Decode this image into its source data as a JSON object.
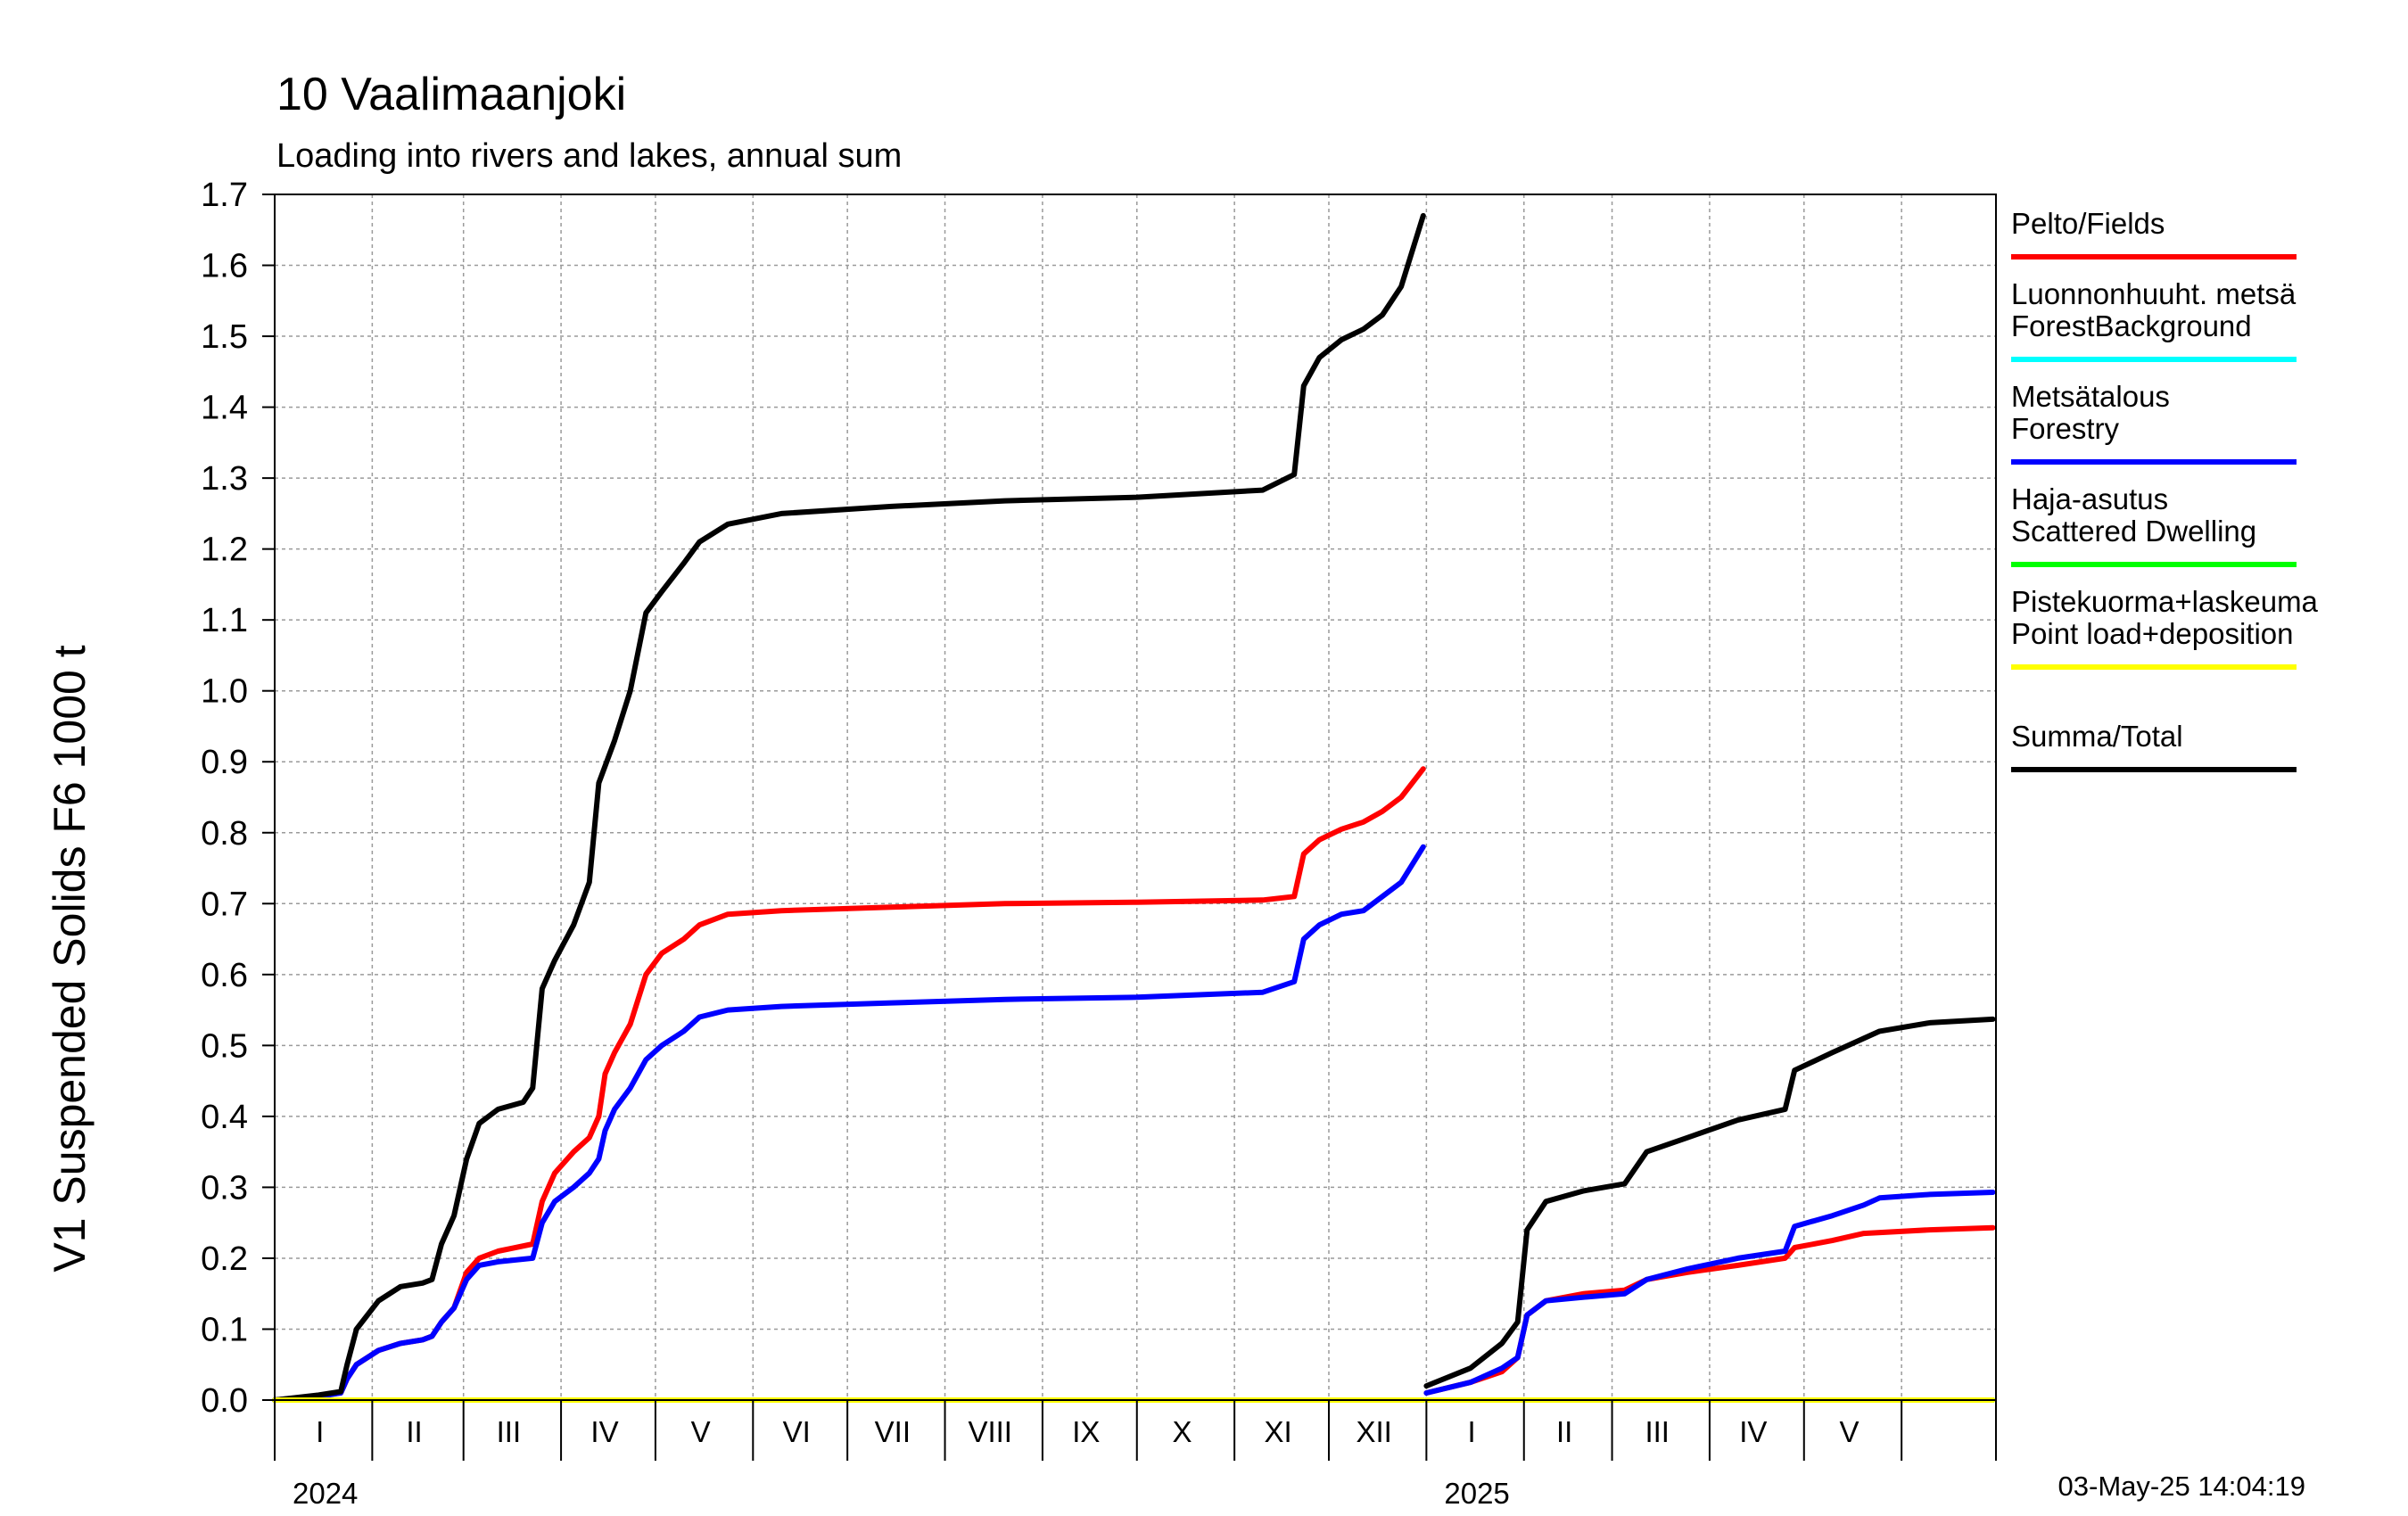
{
  "chart_data": {
    "type": "line",
    "title": "10 Vaalimaanjoki",
    "subtitle": "Loading into rivers and lakes, annual sum",
    "ylabel": "V1 Suspended Solids F6 1000 t",
    "ylim": [
      0.0,
      1.7
    ],
    "yticks": [
      "0.0",
      "0.1",
      "0.2",
      "0.3",
      "0.4",
      "0.5",
      "0.6",
      "0.7",
      "0.8",
      "0.9",
      "1.0",
      "1.1",
      "1.2",
      "1.3",
      "1.4",
      "1.5",
      "1.6",
      "1.7"
    ],
    "xlim": [
      "2024-01-01",
      "2025-06-30"
    ],
    "months": [
      {
        "label": "I",
        "start": "2024-01-01"
      },
      {
        "label": "II",
        "start": "2024-02-01"
      },
      {
        "label": "III",
        "start": "2024-03-01"
      },
      {
        "label": "IV",
        "start": "2024-04-01"
      },
      {
        "label": "V",
        "start": "2024-05-01"
      },
      {
        "label": "VI",
        "start": "2024-06-01"
      },
      {
        "label": "VII",
        "start": "2024-07-01"
      },
      {
        "label": "VIII",
        "start": "2024-08-01"
      },
      {
        "label": "IX",
        "start": "2024-09-01"
      },
      {
        "label": "X",
        "start": "2024-10-01"
      },
      {
        "label": "XI",
        "start": "2024-11-01"
      },
      {
        "label": "XII",
        "start": "2024-12-01"
      },
      {
        "label": "I",
        "start": "2025-01-01"
      },
      {
        "label": "II",
        "start": "2025-02-01"
      },
      {
        "label": "III",
        "start": "2025-03-01"
      },
      {
        "label": "IV",
        "start": "2025-04-01"
      },
      {
        "label": "V",
        "start": "2025-05-01"
      },
      {
        "label": "",
        "start": "2025-06-01"
      }
    ],
    "years": [
      {
        "label": "2024",
        "start": "2024-01-01"
      },
      {
        "label": "2025",
        "start": "2025-01-01"
      }
    ],
    "grid": true,
    "legend_position": "right",
    "timestamp": "03-May-25 14:04:19",
    "series": [
      {
        "name": "Pelto/Fields",
        "color": "#ff0000",
        "segments": [
          [
            [
              "2024-01-01",
              0.0
            ],
            [
              "2024-01-15",
              0.006
            ],
            [
              "2024-01-22",
              0.01
            ],
            [
              "2024-01-24",
              0.03
            ],
            [
              "2024-01-27",
              0.05
            ],
            [
              "2024-02-03",
              0.07
            ],
            [
              "2024-02-10",
              0.08
            ],
            [
              "2024-02-17",
              0.085
            ],
            [
              "2024-02-20",
              0.09
            ],
            [
              "2024-02-23",
              0.11
            ],
            [
              "2024-02-27",
              0.13
            ],
            [
              "2024-03-02",
              0.18
            ],
            [
              "2024-03-06",
              0.2
            ],
            [
              "2024-03-12",
              0.21
            ],
            [
              "2024-03-23",
              0.22
            ],
            [
              "2024-03-26",
              0.28
            ],
            [
              "2024-03-30",
              0.32
            ],
            [
              "2024-04-05",
              0.35
            ],
            [
              "2024-04-10",
              0.37
            ],
            [
              "2024-04-13",
              0.4
            ],
            [
              "2024-04-15",
              0.46
            ],
            [
              "2024-04-18",
              0.49
            ],
            [
              "2024-04-23",
              0.53
            ],
            [
              "2024-04-28",
              0.6
            ],
            [
              "2024-05-03",
              0.63
            ],
            [
              "2024-05-10",
              0.65
            ],
            [
              "2024-05-15",
              0.67
            ],
            [
              "2024-05-24",
              0.685
            ],
            [
              "2024-06-10",
              0.69
            ],
            [
              "2024-07-15",
              0.695
            ],
            [
              "2024-08-20",
              0.7
            ],
            [
              "2024-10-01",
              0.702
            ],
            [
              "2024-11-10",
              0.705
            ],
            [
              "2024-11-20",
              0.71
            ],
            [
              "2024-11-23",
              0.77
            ],
            [
              "2024-11-28",
              0.79
            ],
            [
              "2024-12-05",
              0.805
            ],
            [
              "2024-12-12",
              0.815
            ],
            [
              "2024-12-18",
              0.83
            ],
            [
              "2024-12-24",
              0.85
            ],
            [
              "2024-12-31",
              0.89
            ]
          ],
          [
            [
              "2025-01-01",
              0.01
            ],
            [
              "2025-01-15",
              0.025
            ],
            [
              "2025-01-25",
              0.04
            ],
            [
              "2025-01-30",
              0.06
            ],
            [
              "2025-02-02",
              0.12
            ],
            [
              "2025-02-08",
              0.14
            ],
            [
              "2025-02-20",
              0.15
            ],
            [
              "2025-03-05",
              0.155
            ],
            [
              "2025-03-12",
              0.17
            ],
            [
              "2025-03-25",
              0.18
            ],
            [
              "2025-04-10",
              0.19
            ],
            [
              "2025-04-25",
              0.2
            ],
            [
              "2025-04-28",
              0.215
            ],
            [
              "2025-05-10",
              0.225
            ],
            [
              "2025-05-20",
              0.235
            ],
            [
              "2025-06-10",
              0.24
            ],
            [
              "2025-06-30",
              0.243
            ]
          ]
        ]
      },
      {
        "name": "Luonnonhuuht. metsä ForestBackground",
        "color": "#00ffff",
        "segments": [
          [
            [
              "2024-01-01",
              0.0
            ],
            [
              "2024-12-31",
              0.0
            ]
          ],
          [
            [
              "2025-01-01",
              0.0
            ],
            [
              "2025-06-30",
              0.0
            ]
          ]
        ]
      },
      {
        "name": "Metsätalous Forestry",
        "color": "#0000ff",
        "segments": [
          [
            [
              "2024-01-01",
              0.0
            ],
            [
              "2024-01-15",
              0.005
            ],
            [
              "2024-01-22",
              0.01
            ],
            [
              "2024-01-24",
              0.03
            ],
            [
              "2024-01-27",
              0.05
            ],
            [
              "2024-02-03",
              0.07
            ],
            [
              "2024-02-10",
              0.08
            ],
            [
              "2024-02-17",
              0.085
            ],
            [
              "2024-02-20",
              0.09
            ],
            [
              "2024-02-23",
              0.11
            ],
            [
              "2024-02-27",
              0.13
            ],
            [
              "2024-03-02",
              0.17
            ],
            [
              "2024-03-06",
              0.19
            ],
            [
              "2024-03-12",
              0.195
            ],
            [
              "2024-03-23",
              0.2
            ],
            [
              "2024-03-26",
              0.25
            ],
            [
              "2024-03-30",
              0.28
            ],
            [
              "2024-04-05",
              0.3
            ],
            [
              "2024-04-10",
              0.32
            ],
            [
              "2024-04-13",
              0.34
            ],
            [
              "2024-04-15",
              0.38
            ],
            [
              "2024-04-18",
              0.41
            ],
            [
              "2024-04-23",
              0.44
            ],
            [
              "2024-04-28",
              0.48
            ],
            [
              "2024-05-03",
              0.5
            ],
            [
              "2024-05-10",
              0.52
            ],
            [
              "2024-05-15",
              0.54
            ],
            [
              "2024-05-24",
              0.55
            ],
            [
              "2024-06-10",
              0.555
            ],
            [
              "2024-07-15",
              0.56
            ],
            [
              "2024-08-20",
              0.565
            ],
            [
              "2024-10-01",
              0.568
            ],
            [
              "2024-11-10",
              0.575
            ],
            [
              "2024-11-20",
              0.59
            ],
            [
              "2024-11-23",
              0.65
            ],
            [
              "2024-11-28",
              0.67
            ],
            [
              "2024-12-05",
              0.685
            ],
            [
              "2024-12-12",
              0.69
            ],
            [
              "2024-12-18",
              0.71
            ],
            [
              "2024-12-24",
              0.73
            ],
            [
              "2024-12-31",
              0.78
            ]
          ],
          [
            [
              "2025-01-01",
              0.01
            ],
            [
              "2025-01-15",
              0.025
            ],
            [
              "2025-01-25",
              0.045
            ],
            [
              "2025-01-30",
              0.06
            ],
            [
              "2025-02-02",
              0.12
            ],
            [
              "2025-02-08",
              0.14
            ],
            [
              "2025-02-20",
              0.145
            ],
            [
              "2025-03-05",
              0.15
            ],
            [
              "2025-03-12",
              0.17
            ],
            [
              "2025-03-25",
              0.185
            ],
            [
              "2025-04-10",
              0.2
            ],
            [
              "2025-04-25",
              0.21
            ],
            [
              "2025-04-28",
              0.245
            ],
            [
              "2025-05-10",
              0.26
            ],
            [
              "2025-05-20",
              0.275
            ],
            [
              "2025-05-25",
              0.285
            ],
            [
              "2025-06-10",
              0.29
            ],
            [
              "2025-06-30",
              0.293
            ]
          ]
        ]
      },
      {
        "name": "Haja-asutus Scattered Dwelling",
        "color": "#00ff00",
        "segments": [
          [
            [
              "2024-01-01",
              0.0
            ],
            [
              "2024-12-31",
              0.0
            ]
          ],
          [
            [
              "2025-01-01",
              0.0
            ],
            [
              "2025-06-30",
              0.0
            ]
          ]
        ]
      },
      {
        "name": "Pistekuorma+laskeuma Point load+deposition",
        "color": "#ffff00",
        "segments": [
          [
            [
              "2024-01-01",
              0.0
            ],
            [
              "2024-12-31",
              0.0
            ]
          ],
          [
            [
              "2025-01-01",
              0.0
            ],
            [
              "2025-06-30",
              0.0
            ]
          ]
        ]
      },
      {
        "name": "Summa/Total",
        "color": "#000000",
        "segments": [
          [
            [
              "2024-01-01",
              0.0
            ],
            [
              "2024-01-15",
              0.007
            ],
            [
              "2024-01-22",
              0.012
            ],
            [
              "2024-01-24",
              0.05
            ],
            [
              "2024-01-27",
              0.1
            ],
            [
              "2024-02-03",
              0.14
            ],
            [
              "2024-02-10",
              0.16
            ],
            [
              "2024-02-17",
              0.165
            ],
            [
              "2024-02-20",
              0.17
            ],
            [
              "2024-02-23",
              0.22
            ],
            [
              "2024-02-27",
              0.26
            ],
            [
              "2024-03-02",
              0.34
            ],
            [
              "2024-03-06",
              0.39
            ],
            [
              "2024-03-12",
              0.41
            ],
            [
              "2024-03-20",
              0.42
            ],
            [
              "2024-03-23",
              0.44
            ],
            [
              "2024-03-26",
              0.58
            ],
            [
              "2024-03-30",
              0.62
            ],
            [
              "2024-04-05",
              0.67
            ],
            [
              "2024-04-10",
              0.73
            ],
            [
              "2024-04-13",
              0.87
            ],
            [
              "2024-04-18",
              0.93
            ],
            [
              "2024-04-23",
              1.0
            ],
            [
              "2024-04-28",
              1.11
            ],
            [
              "2024-05-03",
              1.14
            ],
            [
              "2024-05-10",
              1.18
            ],
            [
              "2024-05-15",
              1.21
            ],
            [
              "2024-05-24",
              1.235
            ],
            [
              "2024-06-10",
              1.25
            ],
            [
              "2024-07-15",
              1.26
            ],
            [
              "2024-08-20",
              1.268
            ],
            [
              "2024-10-01",
              1.273
            ],
            [
              "2024-11-10",
              1.283
            ],
            [
              "2024-11-20",
              1.305
            ],
            [
              "2024-11-23",
              1.43
            ],
            [
              "2024-11-28",
              1.47
            ],
            [
              "2024-12-05",
              1.495
            ],
            [
              "2024-12-12",
              1.51
            ],
            [
              "2024-12-18",
              1.53
            ],
            [
              "2024-12-24",
              1.57
            ],
            [
              "2024-12-31",
              1.67
            ]
          ],
          [
            [
              "2025-01-01",
              0.02
            ],
            [
              "2025-01-15",
              0.045
            ],
            [
              "2025-01-25",
              0.08
            ],
            [
              "2025-01-30",
              0.11
            ],
            [
              "2025-02-02",
              0.24
            ],
            [
              "2025-02-08",
              0.28
            ],
            [
              "2025-02-20",
              0.295
            ],
            [
              "2025-03-05",
              0.305
            ],
            [
              "2025-03-12",
              0.35
            ],
            [
              "2025-03-25",
              0.37
            ],
            [
              "2025-04-10",
              0.395
            ],
            [
              "2025-04-25",
              0.41
            ],
            [
              "2025-04-28",
              0.465
            ],
            [
              "2025-05-10",
              0.49
            ],
            [
              "2025-05-20",
              0.51
            ],
            [
              "2025-05-25",
              0.52
            ],
            [
              "2025-06-10",
              0.532
            ],
            [
              "2025-06-30",
              0.537
            ]
          ]
        ]
      }
    ]
  }
}
